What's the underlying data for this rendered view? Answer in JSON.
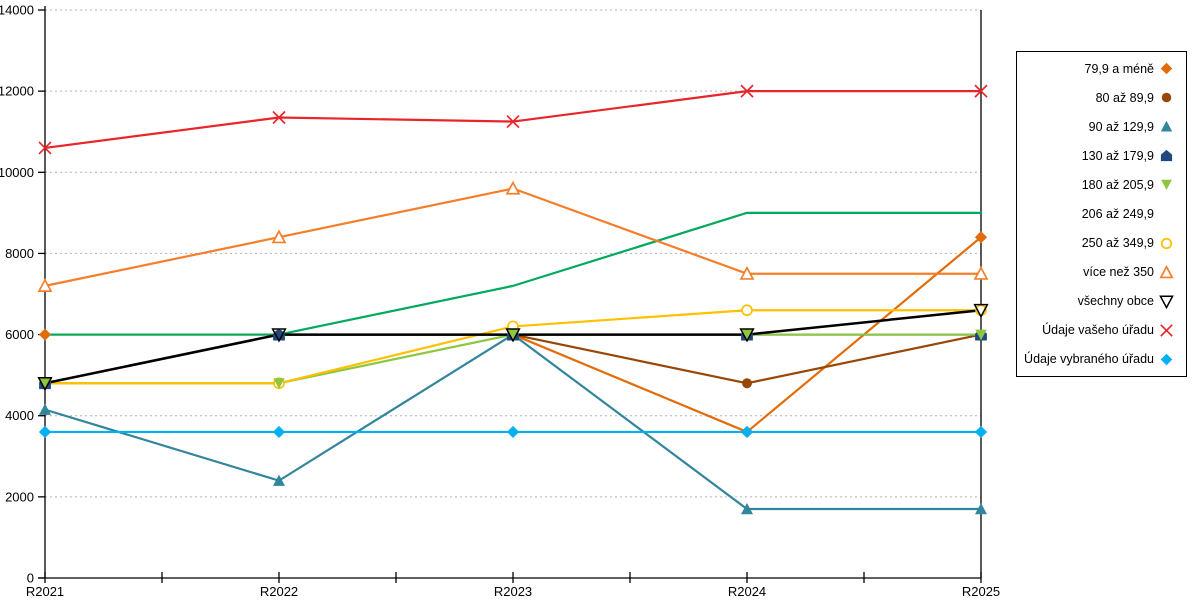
{
  "chart_data": {
    "type": "line",
    "categories": [
      "R2021",
      "R2022",
      "R2023",
      "R2024",
      "R2025"
    ],
    "series": [
      {
        "name": "79,9 a méně",
        "color": "#E36C0A",
        "marker": "diamond",
        "fill": "solid",
        "values": [
          6000,
          6000,
          6000,
          3600,
          8400
        ]
      },
      {
        "name": "80 až 89,9",
        "color": "#974706",
        "marker": "circle",
        "fill": "solid",
        "values": [
          4800,
          6000,
          6000,
          4800,
          6000
        ]
      },
      {
        "name": "90 až 129,9",
        "color": "#31859C",
        "marker": "triangle-up",
        "fill": "solid",
        "values": [
          4150,
          2400,
          6000,
          1700,
          1700
        ]
      },
      {
        "name": "130 až 179,9",
        "color": "#1F497D",
        "marker": "pentagon",
        "fill": "solid",
        "values": [
          4800,
          6000,
          6000,
          6000,
          6000
        ]
      },
      {
        "name": "180 až 205,9",
        "color": "#8DC63F",
        "marker": "triangle-down",
        "fill": "solid",
        "values": [
          4800,
          4800,
          6000,
          6000,
          6000
        ]
      },
      {
        "name": "206 až 249,9",
        "color": "#00A95C",
        "marker": "square",
        "fill": "open",
        "values": [
          6000,
          6000,
          7200,
          9000,
          9000
        ]
      },
      {
        "name": "250 až 349,9",
        "color": "#FFC000",
        "marker": "circle",
        "fill": "open",
        "values": [
          4800,
          4800,
          6200,
          6600,
          6600
        ]
      },
      {
        "name": "více než 350",
        "color": "#F57E2A",
        "marker": "triangle-up",
        "fill": "open",
        "values": [
          7200,
          8400,
          9600,
          7500,
          7500
        ]
      },
      {
        "name": "všechny obce",
        "color": "#000000",
        "marker": "triangle-down",
        "fill": "hollow",
        "values": [
          4800,
          6000,
          6000,
          6000,
          6600
        ]
      },
      {
        "name": "Údaje vašeho úřadu",
        "color": "#E8262A",
        "marker": "x",
        "fill": "line",
        "values": [
          10600,
          11350,
          11250,
          12000,
          12000
        ]
      },
      {
        "name": "Údaje vybraného úřadu",
        "color": "#00B0F0",
        "marker": "diamond",
        "fill": "solid",
        "values": [
          3600,
          3600,
          3600,
          3600,
          3600
        ]
      }
    ],
    "xlabel": "",
    "ylabel": "",
    "title": "",
    "ylim": [
      0,
      14000
    ],
    "ytick_step": 2000,
    "ytick_labels": [
      "0",
      "2000",
      "4000",
      "6000",
      "8000",
      "10000",
      "12000",
      "14000"
    ],
    "grid": "horizontal-dotted",
    "grid_color": "#B3B3B3",
    "axis_color": "#000000",
    "legend_position": "right",
    "marker_draw_order": [
      5,
      1,
      6,
      0,
      2,
      3,
      4,
      7,
      8,
      9,
      10
    ]
  }
}
